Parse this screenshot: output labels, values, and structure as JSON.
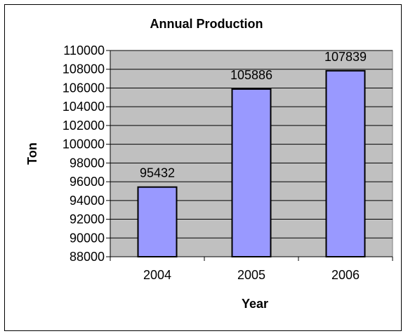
{
  "chart_data": {
    "type": "bar",
    "title": "Annual Production",
    "xlabel": "Year",
    "ylabel": "Ton",
    "categories": [
      "2004",
      "2005",
      "2006"
    ],
    "values": [
      95432,
      105886,
      107839
    ],
    "data_labels": [
      "95432",
      "105886",
      "107839"
    ],
    "ylim": [
      88000,
      110000
    ],
    "yticks": [
      "88000",
      "90000",
      "92000",
      "94000",
      "96000",
      "98000",
      "100000",
      "102000",
      "104000",
      "106000",
      "108000",
      "110000"
    ],
    "grid": true,
    "legend": "none",
    "colors": {
      "bar": "#9999ff",
      "plot_bg": "#c0c0c0",
      "bar_border": "#000000",
      "grid": "#000000"
    }
  }
}
